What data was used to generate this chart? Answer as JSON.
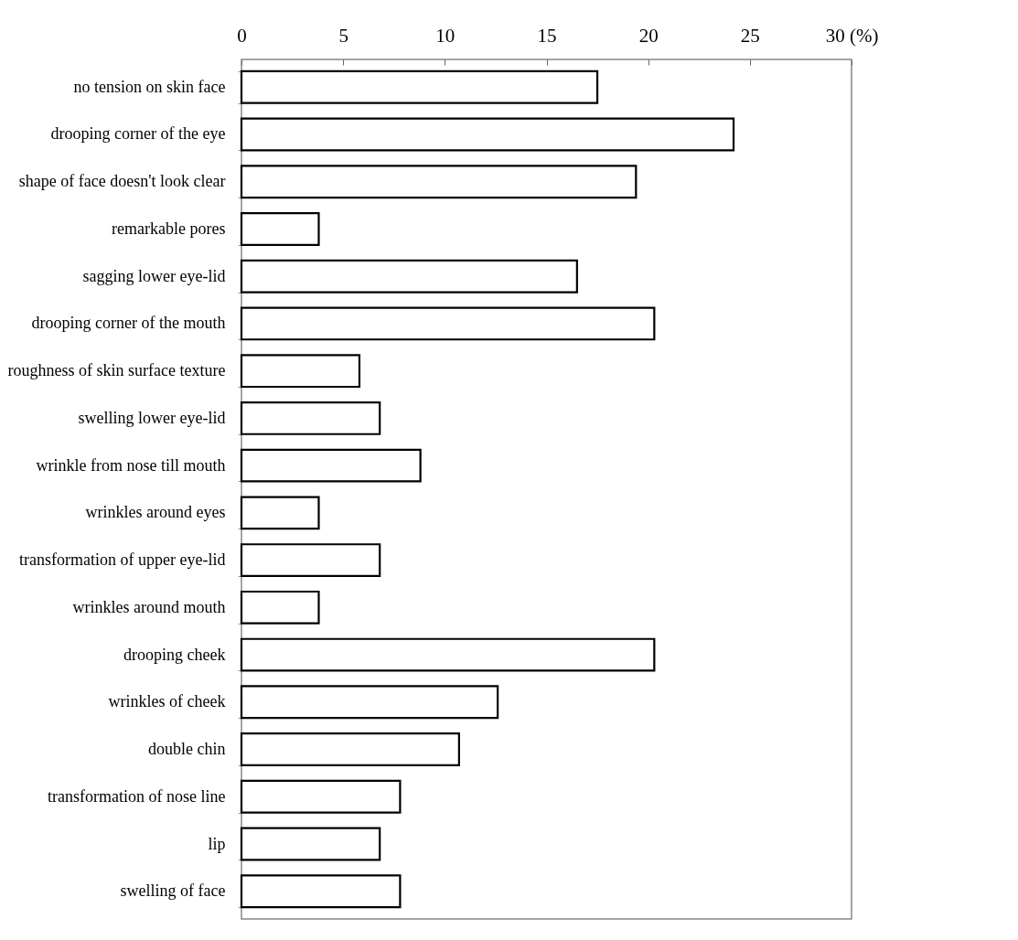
{
  "chart_data": {
    "type": "bar",
    "orientation": "horizontal",
    "categories": [
      "no tension on skin face",
      "drooping corner of the eye",
      "shape of face doesn't look clear",
      "remarkable pores",
      "sagging lower eye-lid",
      "drooping corner of the mouth",
      "roughness of skin surface texture",
      "swelling lower eye-lid",
      "wrinkle from nose till mouth",
      "wrinkles around eyes",
      "transformation of upper eye-lid",
      "wrinkles around mouth",
      "drooping cheek",
      "wrinkles of cheek",
      "double chin",
      "transformation of nose line",
      "lip",
      "swelling of face"
    ],
    "values": [
      17.5,
      24.2,
      19.4,
      3.8,
      16.5,
      20.3,
      5.8,
      6.8,
      8.8,
      3.8,
      6.8,
      3.8,
      20.3,
      12.6,
      10.7,
      7.8,
      6.8,
      7.8
    ],
    "color": "#ffffff",
    "xlim": [
      0,
      30
    ],
    "xticks": [
      0,
      5,
      10,
      15,
      20,
      25,
      {
        "value": 30,
        "label": "30 (%)"
      }
    ],
    "grid": false
  }
}
